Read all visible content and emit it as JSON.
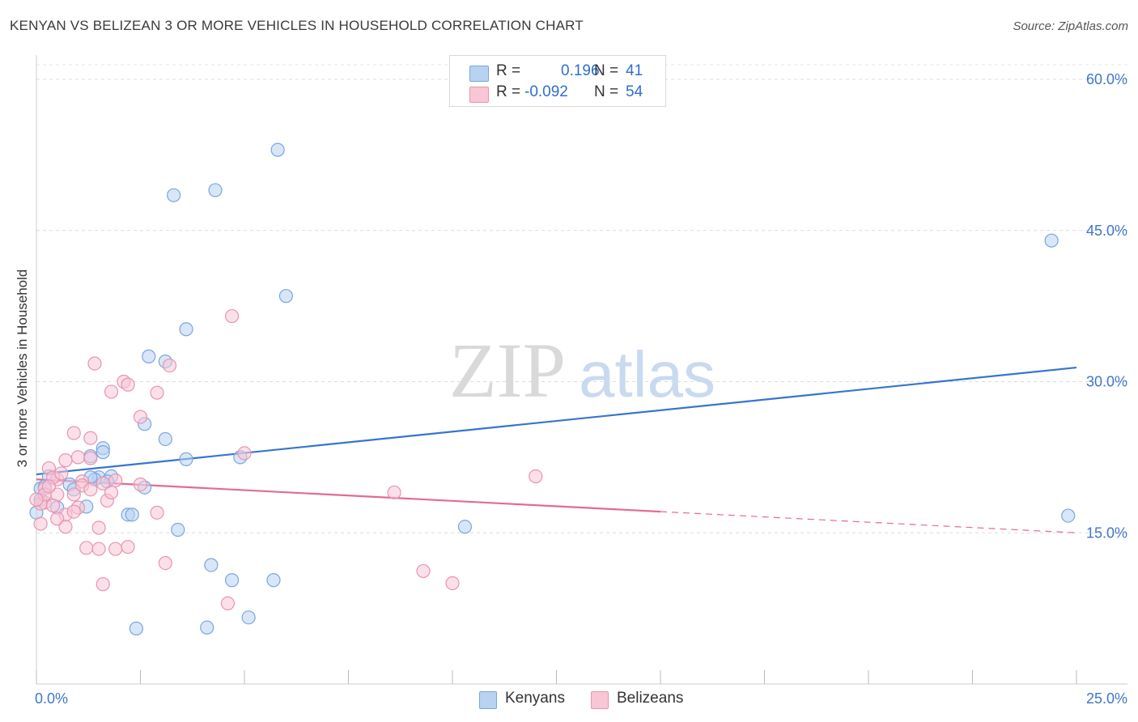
{
  "title": "KENYAN VS BELIZEAN 3 OR MORE VEHICLES IN HOUSEHOLD CORRELATION CHART",
  "source": "Source: ZipAtlas.com",
  "watermark": {
    "zip": "ZIP",
    "atlas": "atlas"
  },
  "legend": {
    "r_label": "R =",
    "n_label": "N =",
    "rows": [
      {
        "r": "0.196",
        "n": "41",
        "color": "#aac8f0"
      },
      {
        "r": "-0.092",
        "n": "54",
        "color": "#f5b6c8"
      }
    ]
  },
  "bottom_legend": [
    "Kenyans",
    "Belizeans"
  ],
  "colors": {
    "blue_fill": "#b8d2f2",
    "blue_stroke": "#7aa6de",
    "blue_line": "#3575d0",
    "pink_fill": "#f8c6d5",
    "pink_stroke": "#e894b0",
    "pink_line": "#e46a93",
    "tick_text": "#3f76c8"
  },
  "chart_data": {
    "type": "scatter",
    "title": "KENYAN VS BELIZEAN 3 OR MORE VEHICLES IN HOUSEHOLD CORRELATION CHART",
    "xlabel": "",
    "ylabel": "3 or more Vehicles in Household",
    "xlim": [
      0,
      25
    ],
    "ylim": [
      0,
      60
    ],
    "x_tick_labels": [
      "0.0%",
      "25.0%"
    ],
    "y_ticks": [
      15,
      30,
      45,
      60
    ],
    "y_tick_labels": [
      "15.0%",
      "30.0%",
      "45.0%",
      "60.0%"
    ],
    "series": [
      {
        "name": "Kenyans",
        "points": [
          [
            5.8,
            53.0
          ],
          [
            4.3,
            49.0
          ],
          [
            3.3,
            48.5
          ],
          [
            24.4,
            44.0
          ],
          [
            6.0,
            38.5
          ],
          [
            3.6,
            35.2
          ],
          [
            2.7,
            32.5
          ],
          [
            3.1,
            32.0
          ],
          [
            2.6,
            25.8
          ],
          [
            3.1,
            24.3
          ],
          [
            1.6,
            23.4
          ],
          [
            1.6,
            23.0
          ],
          [
            1.3,
            22.6
          ],
          [
            3.6,
            22.3
          ],
          [
            4.9,
            22.5
          ],
          [
            1.8,
            20.6
          ],
          [
            1.5,
            20.5
          ],
          [
            1.4,
            20.3
          ],
          [
            1.7,
            20.1
          ],
          [
            0.8,
            19.8
          ],
          [
            0.9,
            19.3
          ],
          [
            2.6,
            19.5
          ],
          [
            1.2,
            17.6
          ],
          [
            0.5,
            17.5
          ],
          [
            2.2,
            16.8
          ],
          [
            2.3,
            16.8
          ],
          [
            3.4,
            15.3
          ],
          [
            10.3,
            15.6
          ],
          [
            24.8,
            16.7
          ],
          [
            4.2,
            11.8
          ],
          [
            4.7,
            10.3
          ],
          [
            5.7,
            10.3
          ],
          [
            2.4,
            5.5
          ],
          [
            4.1,
            5.6
          ],
          [
            5.1,
            6.6
          ],
          [
            0.3,
            20.6
          ],
          [
            0.1,
            18.3
          ],
          [
            0.1,
            19.4
          ],
          [
            0.0,
            17.0
          ],
          [
            1.3,
            20.5
          ],
          [
            0.2,
            19.6
          ]
        ]
      },
      {
        "name": "Belizeans",
        "points": [
          [
            4.7,
            36.5
          ],
          [
            1.4,
            31.8
          ],
          [
            3.2,
            31.6
          ],
          [
            2.1,
            30.0
          ],
          [
            2.2,
            29.7
          ],
          [
            1.8,
            29.0
          ],
          [
            2.9,
            28.9
          ],
          [
            2.5,
            26.5
          ],
          [
            0.9,
            24.9
          ],
          [
            1.3,
            24.4
          ],
          [
            5.0,
            22.9
          ],
          [
            1.0,
            22.5
          ],
          [
            0.7,
            22.2
          ],
          [
            1.3,
            22.4
          ],
          [
            0.3,
            21.4
          ],
          [
            12.0,
            20.6
          ],
          [
            1.9,
            20.2
          ],
          [
            0.5,
            20.3
          ],
          [
            1.1,
            20.1
          ],
          [
            1.6,
            19.9
          ],
          [
            2.5,
            19.8
          ],
          [
            1.1,
            19.7
          ],
          [
            1.3,
            19.3
          ],
          [
            0.9,
            18.8
          ],
          [
            0.5,
            18.8
          ],
          [
            8.6,
            19.0
          ],
          [
            1.7,
            18.2
          ],
          [
            0.2,
            18.0
          ],
          [
            0.4,
            17.7
          ],
          [
            1.0,
            17.5
          ],
          [
            2.9,
            17.0
          ],
          [
            0.7,
            16.8
          ],
          [
            0.9,
            17.1
          ],
          [
            0.5,
            16.4
          ],
          [
            1.5,
            15.5
          ],
          [
            0.7,
            15.6
          ],
          [
            0.1,
            15.9
          ],
          [
            1.2,
            13.5
          ],
          [
            1.5,
            13.4
          ],
          [
            1.9,
            13.4
          ],
          [
            2.2,
            13.6
          ],
          [
            3.1,
            12.0
          ],
          [
            9.3,
            11.2
          ],
          [
            1.6,
            9.9
          ],
          [
            10.0,
            10.0
          ],
          [
            4.6,
            8.0
          ],
          [
            0.2,
            19.4
          ],
          [
            0.4,
            20.5
          ],
          [
            0.1,
            17.9
          ],
          [
            0.2,
            18.8
          ],
          [
            1.8,
            19.0
          ],
          [
            0.6,
            20.9
          ],
          [
            0.0,
            18.3
          ],
          [
            0.3,
            19.6
          ]
        ]
      }
    ],
    "trend_lines": [
      {
        "series": "Kenyans",
        "x": [
          0,
          25
        ],
        "y": [
          20.8,
          31.4
        ],
        "style": "solid"
      },
      {
        "series": "Belizeans",
        "x": [
          0,
          15
        ],
        "y": [
          20.3,
          17.1
        ],
        "style": "solid"
      },
      {
        "series": "Belizeans",
        "x": [
          15,
          25
        ],
        "y": [
          17.1,
          15.0
        ],
        "style": "dashed"
      }
    ]
  }
}
